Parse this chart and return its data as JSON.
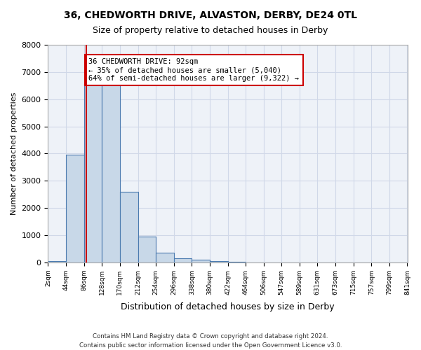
{
  "title_line1": "36, CHEDWORTH DRIVE, ALVASTON, DERBY, DE24 0TL",
  "title_line2": "Size of property relative to detached houses in Derby",
  "xlabel": "Distribution of detached houses by size in Derby",
  "ylabel": "Number of detached properties",
  "bar_edges": [
    2,
    44,
    86,
    128,
    170,
    212,
    254,
    296,
    338,
    380,
    422,
    464,
    506,
    547,
    589,
    631,
    673,
    715,
    757,
    799,
    841
  ],
  "bar_heights": [
    50,
    3950,
    6550,
    6550,
    2600,
    950,
    350,
    150,
    100,
    50,
    10,
    5,
    2,
    1,
    0,
    0,
    0,
    0,
    0,
    0
  ],
  "bar_color": "#c8d8e8",
  "bar_edge_color": "#4a7aaf",
  "vline_x": 92,
  "vline_color": "#cc0000",
  "annotation_text": "36 CHEDWORTH DRIVE: 92sqm\n← 35% of detached houses are smaller (5,040)\n64% of semi-detached houses are larger (9,322) →",
  "annotation_box_color": "#ffffff",
  "annotation_box_edge": "#cc0000",
  "ylim": [
    0,
    8000
  ],
  "yticks": [
    0,
    1000,
    2000,
    3000,
    4000,
    5000,
    6000,
    7000,
    8000
  ],
  "grid_color": "#d0d8e8",
  "background_color": "#eef2f8",
  "footer_line1": "Contains HM Land Registry data © Crown copyright and database right 2024.",
  "footer_line2": "Contains public sector information licensed under the Open Government Licence v3.0.",
  "tick_labels": [
    "2sqm",
    "44sqm",
    "86sqm",
    "128sqm",
    "170sqm",
    "212sqm",
    "254sqm",
    "296sqm",
    "338sqm",
    "380sqm",
    "422sqm",
    "464sqm",
    "506sqm",
    "547sqm",
    "589sqm",
    "631sqm",
    "673sqm",
    "715sqm",
    "757sqm",
    "799sqm",
    "841sqm"
  ]
}
